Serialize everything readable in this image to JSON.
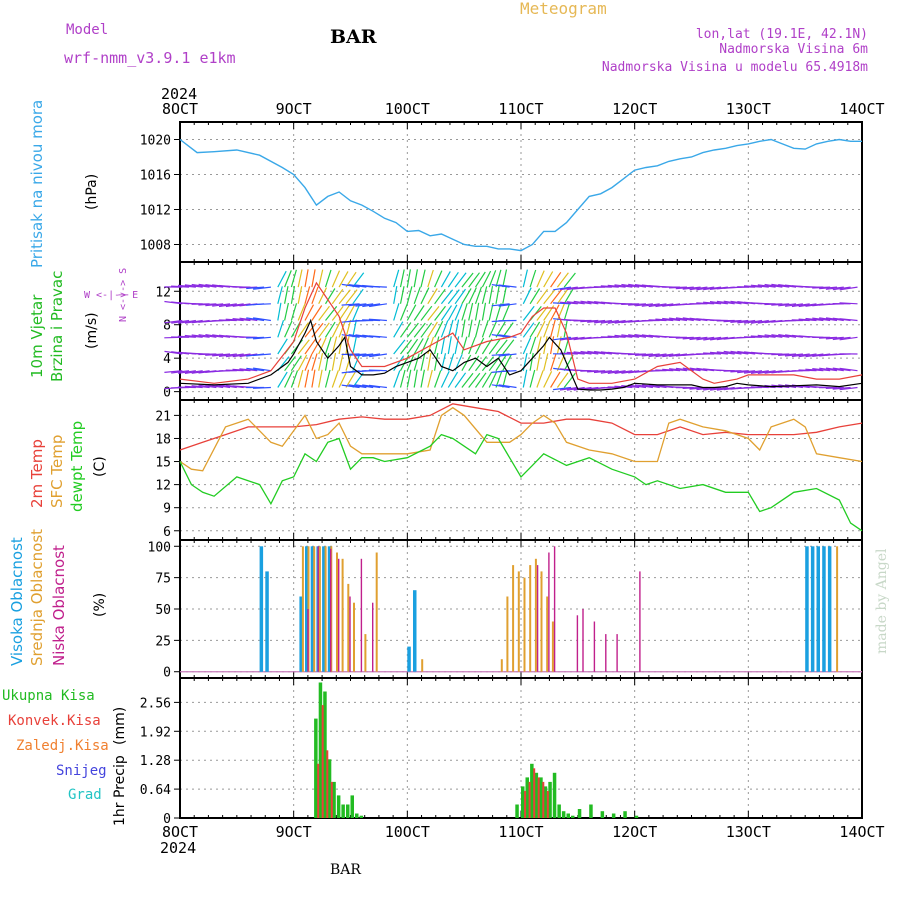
{
  "header": {
    "model_label": "Model",
    "model_name": "wrf-nmm_v3.9.1 e1km",
    "station": "BAR",
    "product": "Meteogram",
    "coords": "lon,lat (19.1E, 42.1N)",
    "elevation": "Nadmorska Visina 6m",
    "model_elevation": "Nadmorska Visina u modelu 65.4918m",
    "footer_station": "BAR",
    "watermark": "made by Angel"
  },
  "colors": {
    "pressure": "#3aa8e8",
    "wind_speed": "#000000",
    "wind_gust": "#e8413a",
    "wind_label": "#22bb22",
    "temp_2m": "#e8413a",
    "temp_sfc": "#e0a030",
    "dewpoint": "#22cc22",
    "cloud_high": "#1aa0e0",
    "cloud_mid": "#e0a030",
    "cloud_low": "#c0208c",
    "precip_total": "#22bb22",
    "precip_conv": "#e8413a",
    "precip_frozen": "#f08030",
    "precip_snow": "#4444dd",
    "precip_graupel": "#22c4c4",
    "purple_text": "#b040c8",
    "gold_text": "#e6b855"
  },
  "time_axis": {
    "top_year": "2024",
    "bottom_year": "2024",
    "labels": [
      "8OCT",
      "9OCT",
      "10OCT",
      "11OCT",
      "12OCT",
      "13OCT",
      "14OCT"
    ]
  },
  "chart_data": [
    {
      "type": "line",
      "panel": "pressure",
      "ylabel": "Pritisak na nivou mora",
      "unit": "(hPa)",
      "x_days": [
        0,
        0.15,
        0.3,
        0.5,
        0.7,
        0.9,
        1.0,
        1.1,
        1.2,
        1.3,
        1.4,
        1.5,
        1.6,
        1.7,
        1.8,
        1.9,
        2.0,
        2.1,
        2.2,
        2.3,
        2.4,
        2.5,
        2.6,
        2.7,
        2.8,
        2.9,
        3.0,
        3.1,
        3.2,
        3.3,
        3.4,
        3.5,
        3.6,
        3.7,
        3.8,
        3.9,
        4.0,
        4.1,
        4.2,
        4.3,
        4.4,
        4.5,
        4.6,
        4.7,
        4.8,
        4.9,
        5.0,
        5.1,
        5.2,
        5.3,
        5.4,
        5.5,
        5.6,
        5.7,
        5.8,
        5.9,
        6.0
      ],
      "values": [
        1020,
        1018.5,
        1018.6,
        1018.8,
        1018.2,
        1016.8,
        1016,
        1014.5,
        1012.5,
        1013.5,
        1014,
        1013,
        1012.5,
        1011.8,
        1011,
        1010.5,
        1009.5,
        1009.6,
        1009,
        1009.2,
        1008.6,
        1008,
        1007.8,
        1007.8,
        1007.5,
        1007.5,
        1007.3,
        1008,
        1009.5,
        1009.5,
        1010.5,
        1012,
        1013.5,
        1013.8,
        1014.5,
        1015.5,
        1016.5,
        1016.8,
        1017,
        1017.5,
        1017.8,
        1018,
        1018.5,
        1018.8,
        1019,
        1019.3,
        1019.5,
        1019.8,
        1020,
        1019.5,
        1019,
        1018.9,
        1019.5,
        1019.8,
        1020,
        1019.8,
        1019.8
      ],
      "ylim": [
        1006,
        1022
      ],
      "yticks": [
        1008,
        1012,
        1016,
        1020
      ]
    },
    {
      "type": "line",
      "panel": "wind",
      "ylabel": "10m Vjetar",
      "ylabel2": "Brzina i Pravac",
      "unit": "(m/s)",
      "compass": "W <-|-> E",
      "compass_v": "N <-|-> S",
      "series": [
        {
          "name": "speed",
          "x_days": [
            0,
            0.3,
            0.6,
            0.8,
            0.95,
            1.0,
            1.1,
            1.15,
            1.2,
            1.3,
            1.4,
            1.45,
            1.5,
            1.6,
            1.7,
            1.8,
            1.9,
            2.0,
            2.1,
            2.2,
            2.3,
            2.4,
            2.5,
            2.6,
            2.7,
            2.8,
            2.9,
            3.0,
            3.1,
            3.2,
            3.25,
            3.35,
            3.5,
            3.6,
            3.7,
            3.8,
            3.9,
            4.0,
            4.2,
            4.4,
            4.5,
            4.6,
            4.7,
            4.8,
            4.9,
            5.0,
            5.2,
            5.4,
            5.6,
            5.8,
            6.0
          ],
          "values": [
            1,
            0.8,
            1,
            2,
            3.5,
            4.5,
            7,
            8.5,
            6,
            4,
            5.5,
            6.5,
            3,
            2,
            2,
            2.2,
            3,
            3.5,
            4,
            5,
            3,
            2.5,
            3.5,
            4,
            3,
            4,
            2,
            2.5,
            4,
            5.5,
            6.5,
            5,
            0.3,
            0.2,
            0.2,
            0.3,
            0.5,
            1,
            0.8,
            0.8,
            0.8,
            0.5,
            0.5,
            0.6,
            1,
            0.8,
            0.6,
            0.7,
            0.8,
            0.6,
            1
          ]
        },
        {
          "name": "gust",
          "x_days": [
            0,
            0.3,
            0.6,
            0.8,
            1.0,
            1.1,
            1.2,
            1.3,
            1.4,
            1.5,
            1.6,
            1.8,
            2.0,
            2.2,
            2.4,
            2.5,
            2.7,
            2.9,
            3.0,
            3.1,
            3.2,
            3.3,
            3.4,
            3.5,
            3.6,
            3.8,
            4.0,
            4.2,
            4.4,
            4.6,
            4.7,
            4.9,
            5.0,
            5.2,
            5.4,
            5.6,
            5.8,
            6.0
          ],
          "values": [
            1.5,
            1,
            1.5,
            2.5,
            6,
            10,
            13,
            11,
            9,
            5,
            3,
            3,
            4,
            5.5,
            7,
            5,
            6,
            6.5,
            7,
            9,
            10,
            10,
            7,
            1.5,
            1,
            1,
            1.5,
            3,
            3.5,
            1.5,
            1,
            1.5,
            2,
            2,
            2,
            1.5,
            1.5,
            2
          ]
        }
      ],
      "ylim": [
        -1,
        15.5
      ],
      "yticks": [
        0,
        4,
        8,
        12
      ]
    },
    {
      "type": "line",
      "panel": "temperature",
      "unit": "(C)",
      "series": [
        {
          "name": "2m Temp",
          "x_days": [
            0,
            0.2,
            0.4,
            0.6,
            0.8,
            1.0,
            1.2,
            1.4,
            1.6,
            1.8,
            2.0,
            2.2,
            2.4,
            2.6,
            2.8,
            3.0,
            3.2,
            3.4,
            3.6,
            3.8,
            4.0,
            4.2,
            4.4,
            4.6,
            4.8,
            5.0,
            5.2,
            5.4,
            5.6,
            5.8,
            6.0
          ],
          "values": [
            16.5,
            17.5,
            18.5,
            19.5,
            19.5,
            19.5,
            19.8,
            20.5,
            20.8,
            20.5,
            20.5,
            21,
            22.5,
            22,
            21.5,
            20,
            20,
            20.5,
            20.5,
            20,
            18.5,
            18.5,
            19.5,
            18.5,
            18.8,
            18.5,
            18.5,
            18.5,
            18.8,
            19.5,
            20
          ]
        },
        {
          "name": "SFC Temp",
          "x_days": [
            0,
            0.1,
            0.2,
            0.4,
            0.6,
            0.7,
            0.8,
            0.9,
            1.0,
            1.1,
            1.2,
            1.3,
            1.4,
            1.5,
            1.6,
            1.8,
            2.0,
            2.2,
            2.3,
            2.4,
            2.5,
            2.7,
            2.9,
            3.0,
            3.1,
            3.2,
            3.3,
            3.4,
            3.6,
            3.8,
            4.0,
            4.2,
            4.3,
            4.4,
            4.6,
            4.8,
            5.0,
            5.1,
            5.2,
            5.4,
            5.5,
            5.6,
            5.8,
            6.0
          ],
          "values": [
            15,
            14,
            13.8,
            19.5,
            20.5,
            19,
            17.5,
            17,
            19,
            21,
            18,
            18.5,
            20,
            17,
            16,
            16,
            16,
            16.5,
            21,
            22,
            21,
            17.5,
            17.5,
            18.5,
            20,
            21,
            20,
            17.5,
            16.5,
            16,
            15,
            15,
            20,
            20.5,
            19.5,
            19,
            18,
            16.5,
            19.5,
            20.5,
            19.5,
            16,
            15.5,
            15
          ]
        },
        {
          "name": "dewpt Temp",
          "x_days": [
            0,
            0.1,
            0.2,
            0.3,
            0.5,
            0.7,
            0.8,
            0.9,
            1.0,
            1.1,
            1.2,
            1.3,
            1.4,
            1.5,
            1.6,
            1.7,
            1.8,
            2.0,
            2.2,
            2.3,
            2.4,
            2.6,
            2.7,
            2.8,
            2.9,
            3.0,
            3.1,
            3.2,
            3.4,
            3.6,
            3.8,
            4.0,
            4.1,
            4.2,
            4.4,
            4.6,
            4.8,
            5.0,
            5.1,
            5.2,
            5.4,
            5.6,
            5.8,
            5.9,
            6.0
          ],
          "values": [
            15,
            12,
            11,
            10.5,
            13,
            12,
            9.5,
            12.5,
            13,
            16,
            15,
            17.5,
            18,
            14,
            15.5,
            15.5,
            15,
            15.5,
            17,
            18.5,
            18,
            16,
            18.5,
            18,
            15.5,
            13,
            14.5,
            16,
            14.5,
            15.5,
            14,
            13,
            12,
            12.5,
            11.5,
            12,
            11,
            11,
            8.5,
            9,
            11,
            11.5,
            10,
            7,
            6
          ]
        }
      ],
      "ylim": [
        4.8,
        23
      ],
      "yticks": [
        6,
        9,
        12,
        15,
        18,
        21
      ]
    },
    {
      "type": "bar",
      "panel": "cloud",
      "unit": "(%)",
      "series": [
        {
          "name": "Visoka Oblacnost",
          "x_days": [
            0.7,
            0.75,
            1.05,
            1.1,
            1.15,
            1.2,
            1.25,
            1.3,
            2.0,
            2.05,
            5.5,
            5.55,
            5.6,
            5.65,
            5.7
          ],
          "values": [
            100,
            80,
            60,
            100,
            100,
            100,
            100,
            100,
            20,
            65,
            100,
            100,
            100,
            100,
            100
          ]
        },
        {
          "name": "Srednja Oblacnost",
          "x_days": [
            1.05,
            1.1,
            1.15,
            1.2,
            1.25,
            1.3,
            1.35,
            1.4,
            1.45,
            1.5,
            1.6,
            1.7,
            2.1,
            2.8,
            2.85,
            2.9,
            2.95,
            3.0,
            3.05,
            3.1,
            3.15,
            3.2,
            3.25,
            5.75
          ],
          "values": [
            100,
            100,
            100,
            100,
            100,
            100,
            95,
            90,
            70,
            55,
            30,
            95,
            10,
            10,
            60,
            85,
            80,
            75,
            85,
            90,
            80,
            60,
            40,
            100
          ]
        },
        {
          "name": "Niska Oblacnost",
          "x_days": [
            1.08,
            1.17,
            1.28,
            1.35,
            1.45,
            1.55,
            1.65,
            3.1,
            3.2,
            3.25,
            3.45,
            3.5,
            3.6,
            3.7,
            3.8,
            4.0
          ],
          "values": [
            50,
            100,
            98,
            90,
            60,
            90,
            55,
            85,
            95,
            100,
            45,
            50,
            40,
            30,
            30,
            80
          ]
        }
      ],
      "ylim": [
        -5,
        105
      ],
      "yticks": [
        0,
        25,
        50,
        75,
        100
      ]
    },
    {
      "type": "bar",
      "panel": "precip",
      "ylabel": "1hr Precip",
      "unit": "(mm)",
      "legend": [
        "Ukupna Kisa",
        "Konvek.Kisa",
        "Zaledj.Kisa",
        "Snijeg",
        "Grad"
      ],
      "series": [
        {
          "name": "Ukupna Kisa",
          "x_days": [
            1.18,
            1.22,
            1.26,
            1.3,
            1.34,
            1.38,
            1.42,
            1.46,
            1.5,
            1.54,
            1.58,
            2.95,
            3.0,
            3.04,
            3.08,
            3.12,
            3.16,
            3.2,
            3.24,
            3.28,
            3.32,
            3.36,
            3.4,
            3.44,
            3.5,
            3.6,
            3.7,
            3.8,
            3.9,
            4.0
          ],
          "values": [
            2.2,
            3.0,
            2.8,
            1.3,
            0.8,
            0.5,
            0.3,
            0.3,
            0.5,
            0.1,
            0.05,
            0.3,
            0.7,
            0.9,
            1.2,
            1.0,
            0.9,
            0.7,
            0.8,
            1.0,
            0.3,
            0.15,
            0.1,
            0.05,
            0.2,
            0.3,
            0.15,
            0.1,
            0.15,
            0.05
          ]
        },
        {
          "name": "Konvek.Kisa",
          "x_days": [
            1.2,
            1.24,
            1.28,
            1.32,
            3.02,
            3.06,
            3.1,
            3.14,
            3.18,
            3.22
          ],
          "values": [
            1.2,
            2.5,
            1.5,
            0.8,
            0.6,
            0.8,
            1.1,
            0.9,
            0.8,
            0.6
          ]
        }
      ],
      "ylim": [
        0,
        3.1
      ],
      "yticks": [
        0,
        0.64,
        1.28,
        1.92,
        2.56
      ]
    }
  ],
  "side_labels": {
    "cloud_high": "Visoka Oblacnost",
    "cloud_mid": "Srednja Oblacnost",
    "cloud_low": "Niska Oblacnost",
    "temp_2m": "2m Temp",
    "temp_sfc": "SFC Temp",
    "temp_dew": "dewpt Temp"
  }
}
